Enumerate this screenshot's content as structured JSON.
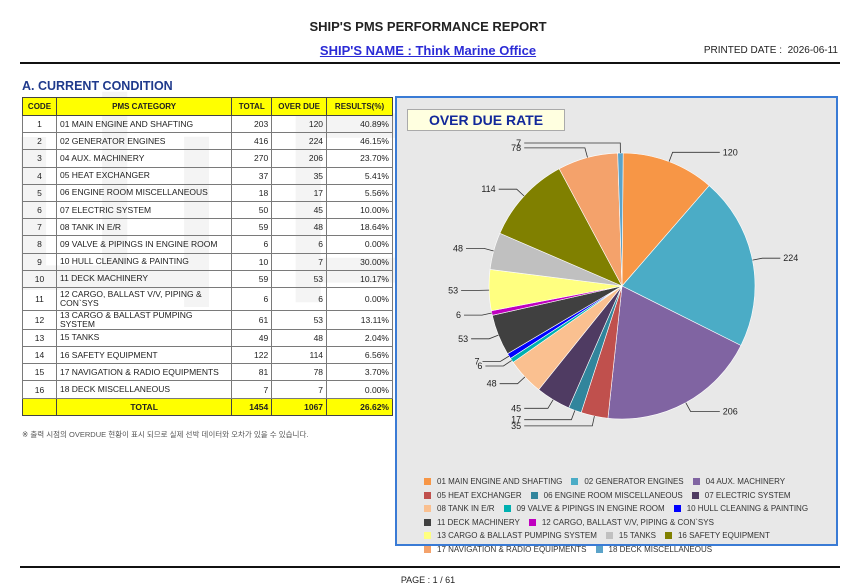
{
  "report": {
    "title": "SHIP'S PMS PERFORMANCE REPORT",
    "ship_name": "SHIP'S NAME : Think Marine Office",
    "printed_label": "PRINTED DATE :",
    "printed_date": "2026-06-11",
    "section_title": "A. CURRENT CONDITION",
    "note": "※ 출력 시점의 OVERDUE 현황이 표시 되므로 실제 선박 데이터와 오차가 있을 수 있습니다.",
    "page": "PAGE : 1 / 61"
  },
  "table": {
    "headers": [
      "CODE",
      "PMS CATEGORY",
      "TOTAL",
      "OVER DUE",
      "RESULTS(%)"
    ],
    "rows": [
      {
        "code": "1",
        "category": "01 MAIN ENGINE AND SHAFTING",
        "total": "203",
        "overdue": "120",
        "result": "40.89%"
      },
      {
        "code": "2",
        "category": "02 GENERATOR ENGINES",
        "total": "416",
        "overdue": "224",
        "result": "46.15%"
      },
      {
        "code": "3",
        "category": "04 AUX. MACHINERY",
        "total": "270",
        "overdue": "206",
        "result": "23.70%"
      },
      {
        "code": "4",
        "category": "05 HEAT EXCHANGER",
        "total": "37",
        "overdue": "35",
        "result": "5.41%"
      },
      {
        "code": "5",
        "category": "06 ENGINE ROOM MISCELLANEOUS",
        "total": "18",
        "overdue": "17",
        "result": "5.56%"
      },
      {
        "code": "6",
        "category": "07 ELECTRIC SYSTEM",
        "total": "50",
        "overdue": "45",
        "result": "10.00%"
      },
      {
        "code": "7",
        "category": "08 TANK IN E/R",
        "total": "59",
        "overdue": "48",
        "result": "18.64%"
      },
      {
        "code": "8",
        "category": "09 VALVE & PIPINGS IN ENGINE ROOM",
        "total": "6",
        "overdue": "6",
        "result": "0.00%"
      },
      {
        "code": "9",
        "category": "10 HULL CLEANING & PAINTING",
        "total": "10",
        "overdue": "7",
        "result": "30.00%"
      },
      {
        "code": "10",
        "category": "11 DECK MACHINERY",
        "total": "59",
        "overdue": "53",
        "result": "10.17%"
      },
      {
        "code": "11",
        "category": "12 CARGO, BALLAST V/V, PIPING & CON`SYS",
        "total": "6",
        "overdue": "6",
        "result": "0.00%"
      },
      {
        "code": "12",
        "category": "13 CARGO & BALLAST PUMPING SYSTEM",
        "total": "61",
        "overdue": "53",
        "result": "13.11%"
      },
      {
        "code": "13",
        "category": "15 TANKS",
        "total": "49",
        "overdue": "48",
        "result": "2.04%"
      },
      {
        "code": "14",
        "category": "16 SAFETY EQUIPMENT",
        "total": "122",
        "overdue": "114",
        "result": "6.56%"
      },
      {
        "code": "15",
        "category": "17 NAVIGATION & RADIO EQUIPMENTS",
        "total": "81",
        "overdue": "78",
        "result": "3.70%"
      },
      {
        "code": "16",
        "category": "18 DECK MISCELLANEOUS",
        "total": "7",
        "overdue": "7",
        "result": "0.00%"
      }
    ],
    "total": {
      "label": "TOTAL",
      "total": "1454",
      "overdue": "1067",
      "result": "26.62%"
    }
  },
  "chart_data": {
    "type": "pie",
    "title": "OVER DUE RATE",
    "legend_placement": "bottom",
    "slices": [
      {
        "name": "01 MAIN ENGINE AND SHAFTING",
        "value": 120,
        "color": "#f79646"
      },
      {
        "name": "02 GENERATOR ENGINES",
        "value": 224,
        "color": "#4bacc6"
      },
      {
        "name": "04 AUX. MACHINERY",
        "value": 206,
        "color": "#8064a2"
      },
      {
        "name": "05 HEAT EXCHANGER",
        "value": 35,
        "color": "#c0504d"
      },
      {
        "name": "06 ENGINE ROOM MISCELLANEOUS",
        "value": 17,
        "color": "#31859c"
      },
      {
        "name": "07 ELECTRIC SYSTEM",
        "value": 45,
        "color": "#4f3b62"
      },
      {
        "name": "08 TANK IN E/R",
        "value": 48,
        "color": "#fac090"
      },
      {
        "name": "09 VALVE & PIPINGS IN ENGINE ROOM",
        "value": 6,
        "color": "#00b0b0"
      },
      {
        "name": "10 HULL CLEANING & PAINTING",
        "value": 7,
        "color": "#0000ff"
      },
      {
        "name": "11 DECK MACHINERY",
        "value": 53,
        "color": "#404040"
      },
      {
        "name": "12 CARGO, BALLAST V/V, PIPING & CON`SYS",
        "value": 6,
        "color": "#c000c0"
      },
      {
        "name": "13 CARGO & BALLAST PUMPING SYSTEM",
        "value": 53,
        "color": "#ffff80"
      },
      {
        "name": "15 TANKS",
        "value": 48,
        "color": "#c0c0c0"
      },
      {
        "name": "16 SAFETY EQUIPMENT",
        "value": 114,
        "color": "#808000"
      },
      {
        "name": "17 NAVIGATION & RADIO EQUIPMENTS",
        "value": 78,
        "color": "#f4a26b"
      },
      {
        "name": "18 DECK MISCELLANEOUS",
        "value": 7,
        "color": "#5ba3c9"
      }
    ]
  }
}
